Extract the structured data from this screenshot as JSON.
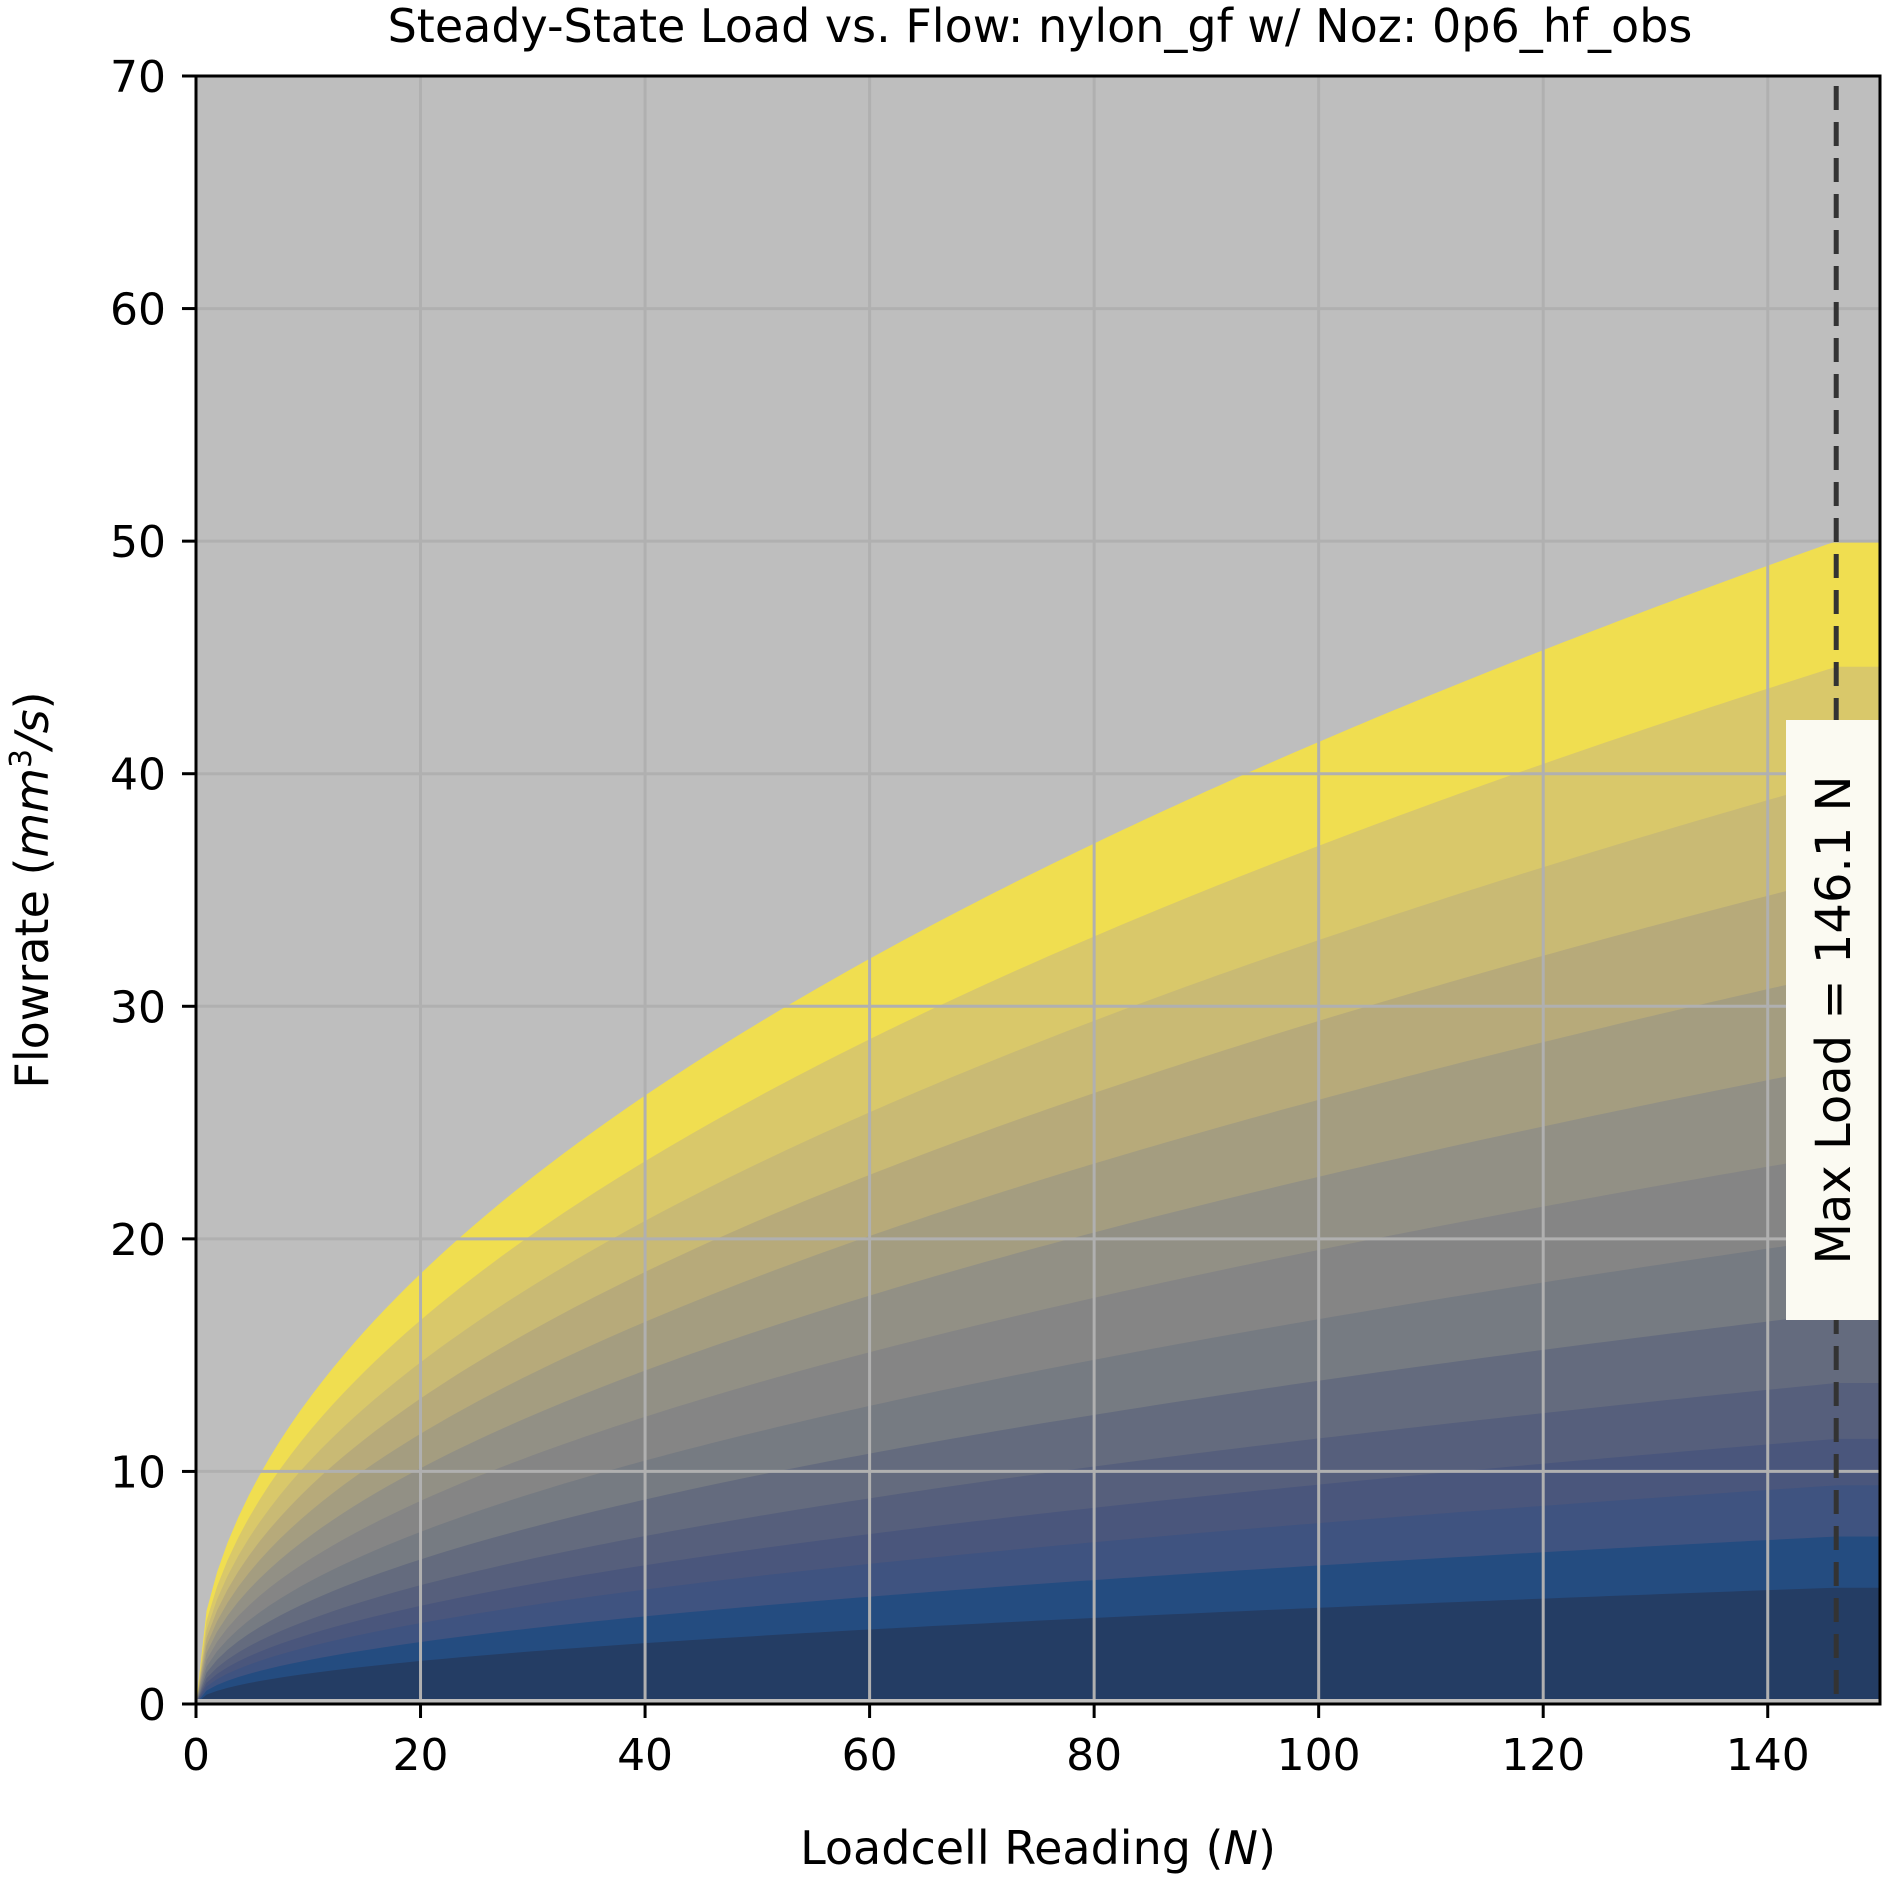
{
  "chart_data": {
    "type": "area",
    "title": "Steady-State Load vs. Flow: nylon_gf w/ Noz: 0p6_hf_obs",
    "xlabel": {
      "prefix": "Loadcell Reading (",
      "var": "N",
      "suffix": ")"
    },
    "ylabel": {
      "prefix": "Flowrate (",
      "var": "mm",
      "sup": "3",
      "var2": "/s",
      "suffix": ")"
    },
    "xlim": [
      0,
      150
    ],
    "ylim": [
      0,
      70
    ],
    "xticks": [
      0,
      20,
      40,
      60,
      80,
      100,
      120,
      140
    ],
    "yticks": [
      0,
      10,
      20,
      30,
      40,
      50,
      60,
      70
    ],
    "grid": true,
    "background_color": "#bebebe",
    "curve_model": "flow = k * load^0.5",
    "series": [
      {
        "flow_at_146N": 50.0,
        "color": "#f0de50"
      },
      {
        "flow_at_146N": 44.6,
        "color": "#d9c86a"
      },
      {
        "flow_at_146N": 39.7,
        "color": "#c9ba74"
      },
      {
        "flow_at_146N": 35.5,
        "color": "#b7aa7a"
      },
      {
        "flow_at_146N": 31.4,
        "color": "#a49d80"
      },
      {
        "flow_at_146N": 27.4,
        "color": "#929085"
      },
      {
        "flow_at_146N": 23.6,
        "color": "#858585"
      },
      {
        "flow_at_146N": 20.0,
        "color": "#767b82"
      },
      {
        "flow_at_146N": 16.8,
        "color": "#646b7e"
      },
      {
        "flow_at_146N": 13.8,
        "color": "#565f7c"
      },
      {
        "flow_at_146N": 11.4,
        "color": "#4a567c"
      },
      {
        "flow_at_146N": 9.4,
        "color": "#3f5380"
      },
      {
        "flow_at_146N": 7.2,
        "color": "#244c80"
      },
      {
        "flow_at_146N": 5.0,
        "color": "#243d64"
      }
    ],
    "vline": {
      "x": 146.1,
      "label": "Max Load = 146.1 N"
    }
  }
}
